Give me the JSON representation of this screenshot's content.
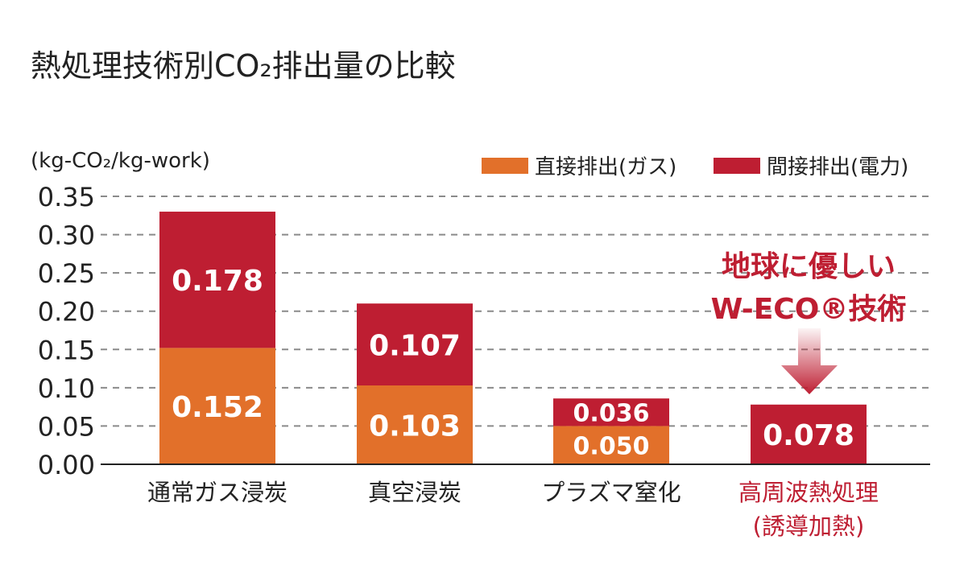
{
  "chart_data": {
    "type": "bar",
    "stacked": true,
    "title": "熱処理技術別CO₂排出量の比較",
    "ylabel": "(kg-CO₂/kg-work)",
    "xlabel": "",
    "ylim": [
      0,
      0.35
    ],
    "yticks": [
      "0.00",
      "0.05",
      "0.10",
      "0.15",
      "0.20",
      "0.25",
      "0.30",
      "0.35"
    ],
    "grid": true,
    "legend_position": "top-right",
    "categories": [
      "通常ガス浸炭",
      "真空浸炭",
      "プラズマ窒化",
      "高周波熱処理\n(誘導加熱)"
    ],
    "highlight_category_index": 3,
    "series": [
      {
        "name": "直接排出(ガス)",
        "color": "#e2702a",
        "values": [
          0.152,
          0.103,
          0.05,
          0
        ]
      },
      {
        "name": "間接排出(電力)",
        "color": "#be1e32",
        "values": [
          0.178,
          0.107,
          0.036,
          0.078
        ]
      }
    ],
    "data_labels": [
      [
        "0.152",
        "0.103",
        "0.050",
        ""
      ],
      [
        "0.178",
        "0.107",
        "0.036",
        "0.078"
      ]
    ],
    "annotation": {
      "line1": "地球に優しい",
      "line2": "W-ECO®技術",
      "color": "#be1e32",
      "arrow_icon": "down-arrow-icon"
    }
  }
}
